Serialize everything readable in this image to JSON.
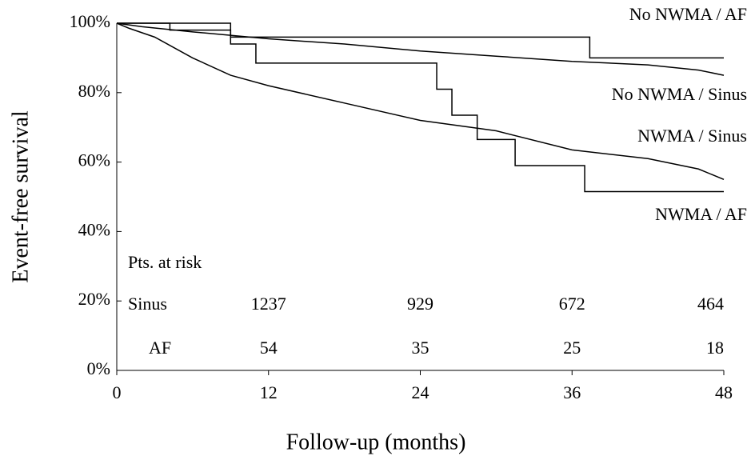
{
  "chart_data": {
    "type": "line",
    "xlabel": "Follow-up (months)",
    "ylabel": "Event-free survival",
    "xlim": [
      0,
      48
    ],
    "xticks": [
      0,
      12,
      24,
      36,
      48
    ],
    "ylim": [
      0,
      100
    ],
    "yticks": [
      {
        "value": 0,
        "label": "0%"
      },
      {
        "value": 20,
        "label": "20%"
      },
      {
        "value": 40,
        "label": "40%"
      },
      {
        "value": 60,
        "label": "60%"
      },
      {
        "value": 80,
        "label": "80%"
      },
      {
        "value": 100,
        "label": "100%"
      }
    ],
    "series": [
      {
        "name": "No NWMA / AF",
        "color": "#000000",
        "x": [
          0,
          9,
          9,
          37.4,
          37.4,
          48
        ],
        "values": [
          100,
          100,
          96,
          96,
          90,
          90
        ]
      },
      {
        "name": "No NWMA / Sinus",
        "color": "#000000",
        "x": [
          0,
          2,
          6,
          12,
          18,
          24,
          30,
          36,
          42,
          46,
          48
        ],
        "values": [
          100,
          99,
          97.5,
          95.5,
          94,
          92,
          90.5,
          89,
          88,
          86.5,
          85
        ]
      },
      {
        "name": "NWMA / Sinus",
        "color": "#000000",
        "x": [
          0,
          1,
          3,
          6,
          9,
          12,
          18,
          24,
          30,
          36,
          42,
          46,
          48
        ],
        "values": [
          100,
          98.5,
          96,
          90,
          85,
          82,
          77,
          72,
          69,
          63.5,
          61,
          58,
          55
        ]
      },
      {
        "name": "NWMA / AF",
        "color": "#000000",
        "x": [
          0,
          4.2,
          4.2,
          9,
          9,
          11,
          11,
          25.3,
          25.3,
          26.5,
          26.5,
          28.5,
          28.5,
          31.5,
          31.5,
          37,
          37,
          48
        ],
        "values": [
          100,
          100,
          98,
          98,
          94,
          94,
          88.5,
          88.5,
          81,
          81,
          73.5,
          73.5,
          66.5,
          66.5,
          59,
          59,
          51.5,
          51.5
        ]
      }
    ],
    "risk_table": {
      "title": "Pts. at risk",
      "rows": [
        {
          "label": "Sinus",
          "counts": [
            1237,
            929,
            672,
            464
          ]
        },
        {
          "label": "AF",
          "counts": [
            54,
            35,
            25,
            18
          ]
        }
      ]
    }
  }
}
